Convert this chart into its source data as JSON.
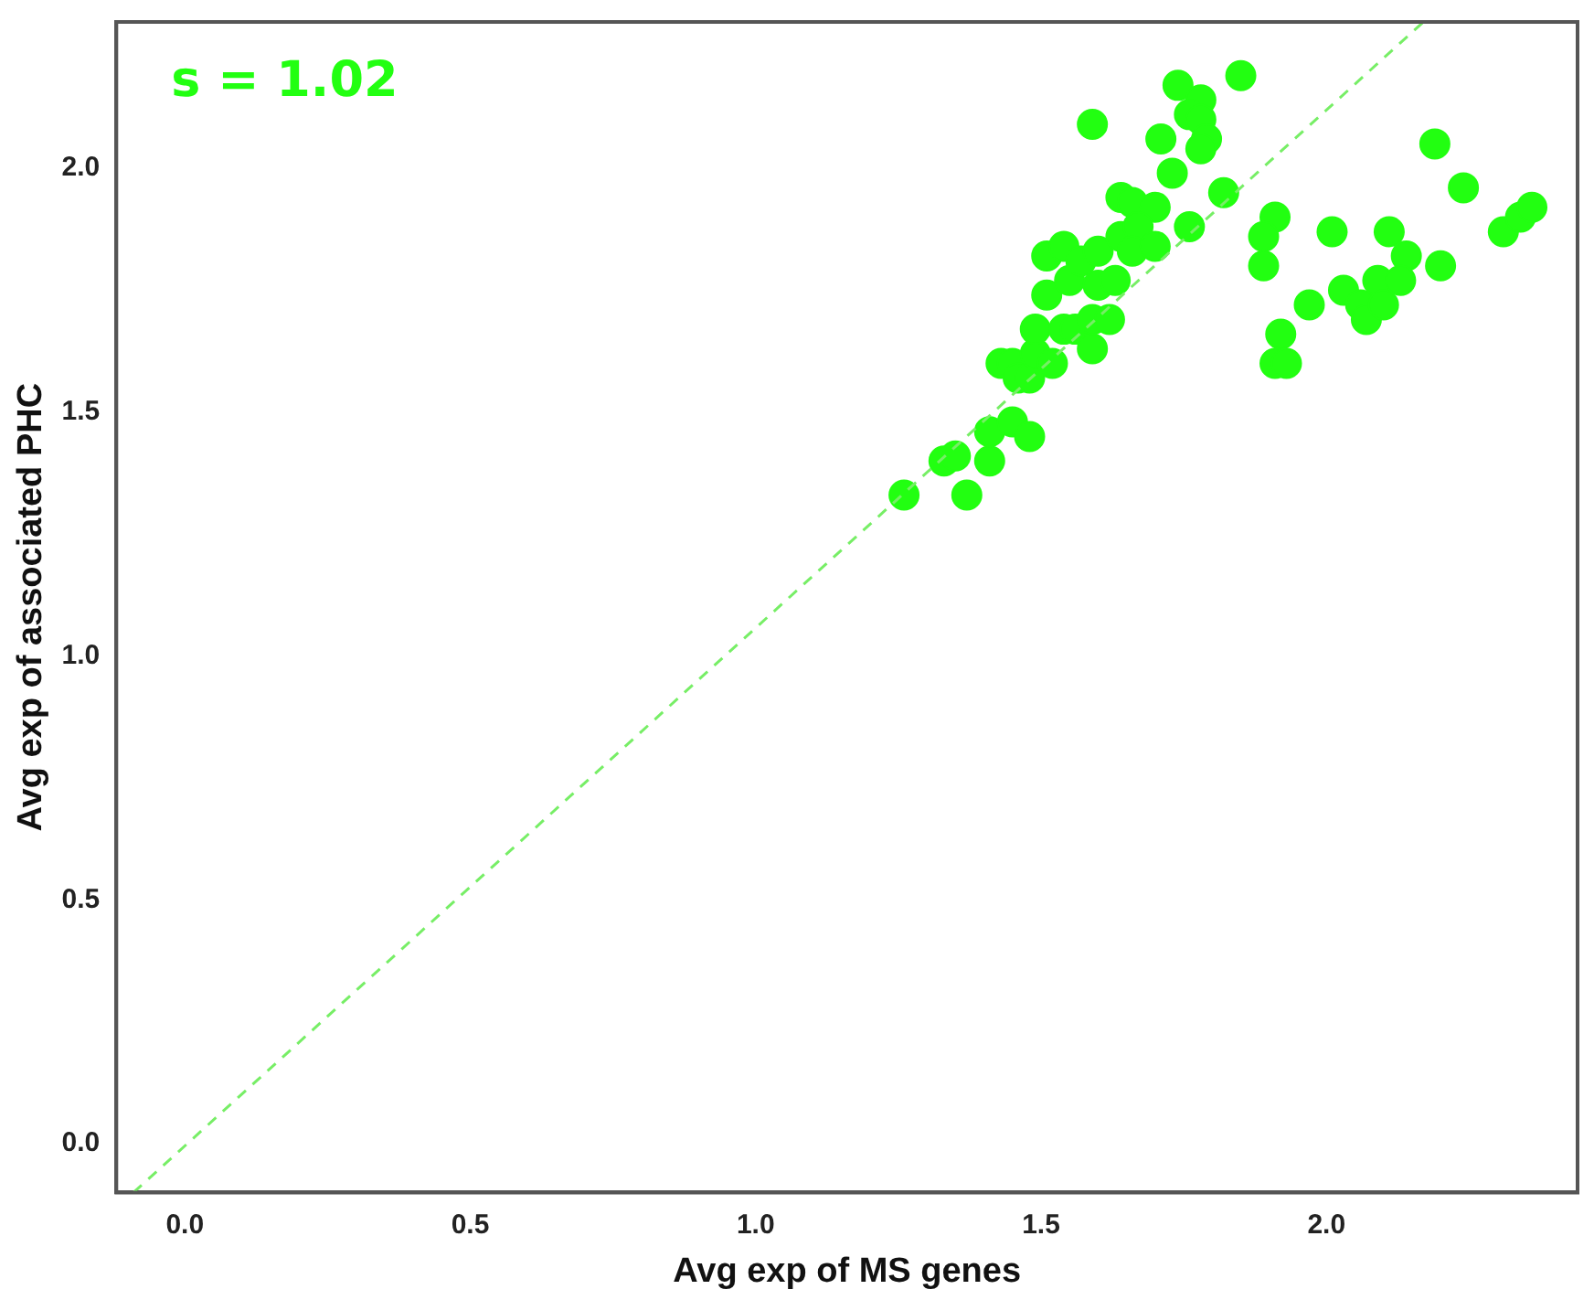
{
  "chart_data": {
    "type": "scatter",
    "xlabel": "Avg exp of MS genes",
    "ylabel": "Avg exp of associated PHC",
    "annotations": [
      "s = 1.02"
    ],
    "xlim": [
      -0.12,
      2.44
    ],
    "ylim": [
      -0.1,
      2.3
    ],
    "xticks": [
      {
        "value": 0,
        "label": "0.0"
      },
      0.5,
      {
        "value": 1,
        "label": "1.0"
      },
      1.5,
      {
        "value": 2,
        "label": "2.0"
      }
    ],
    "yticks": [
      {
        "value": 0,
        "label": "0.0"
      },
      0.5,
      {
        "value": 1,
        "label": "1.0"
      },
      1.5,
      {
        "value": 2,
        "label": "2.0"
      }
    ],
    "grid": false,
    "legend": false,
    "marker": "circle",
    "series": [
      {
        "color": "#22ff11",
        "x": [
          1.26,
          1.33,
          1.35,
          1.37,
          1.41,
          1.41,
          1.45,
          1.48,
          1.43,
          1.45,
          1.46,
          1.48,
          1.49,
          1.49,
          1.52,
          1.54,
          1.56,
          1.59,
          1.59,
          1.62,
          1.51,
          1.55,
          1.51,
          1.54,
          1.57,
          1.6,
          1.6,
          1.63,
          1.64,
          1.66,
          1.7,
          1.64,
          1.67,
          1.66,
          1.7,
          1.59,
          1.71,
          1.73,
          1.76,
          1.74,
          1.78,
          1.76,
          1.78,
          1.79,
          1.78,
          1.85,
          1.82,
          1.91,
          1.89,
          1.89,
          2.01,
          1.97,
          1.92,
          1.91,
          1.93,
          2.03,
          2.06,
          2.07,
          2.09,
          2.1,
          2.11,
          2.14,
          2.13,
          2.19,
          2.24,
          2.2,
          2.31,
          2.34,
          2.36
        ],
        "values": [
          1.33,
          1.4,
          1.41,
          1.33,
          1.4,
          1.46,
          1.48,
          1.45,
          1.6,
          1.6,
          1.57,
          1.57,
          1.62,
          1.67,
          1.6,
          1.67,
          1.67,
          1.63,
          1.69,
          1.69,
          1.74,
          1.77,
          1.82,
          1.84,
          1.81,
          1.83,
          1.76,
          1.77,
          1.94,
          1.93,
          1.92,
          1.86,
          1.88,
          1.83,
          1.84,
          2.09,
          2.06,
          1.99,
          1.88,
          2.17,
          2.14,
          2.11,
          2.1,
          2.06,
          2.04,
          2.19,
          1.95,
          1.9,
          1.86,
          1.8,
          1.87,
          1.72,
          1.66,
          1.6,
          1.6,
          1.75,
          1.72,
          1.69,
          1.77,
          1.72,
          1.87,
          1.82,
          1.77,
          2.05,
          1.96,
          1.8,
          1.87,
          1.9,
          1.92
        ]
      },
      {
        "type": "line",
        "color": "#77ee66",
        "line_style": "dashed",
        "marker": "none",
        "x": [
          -0.09,
          2.17
        ],
        "values": [
          -0.1,
          2.3
        ]
      }
    ]
  }
}
